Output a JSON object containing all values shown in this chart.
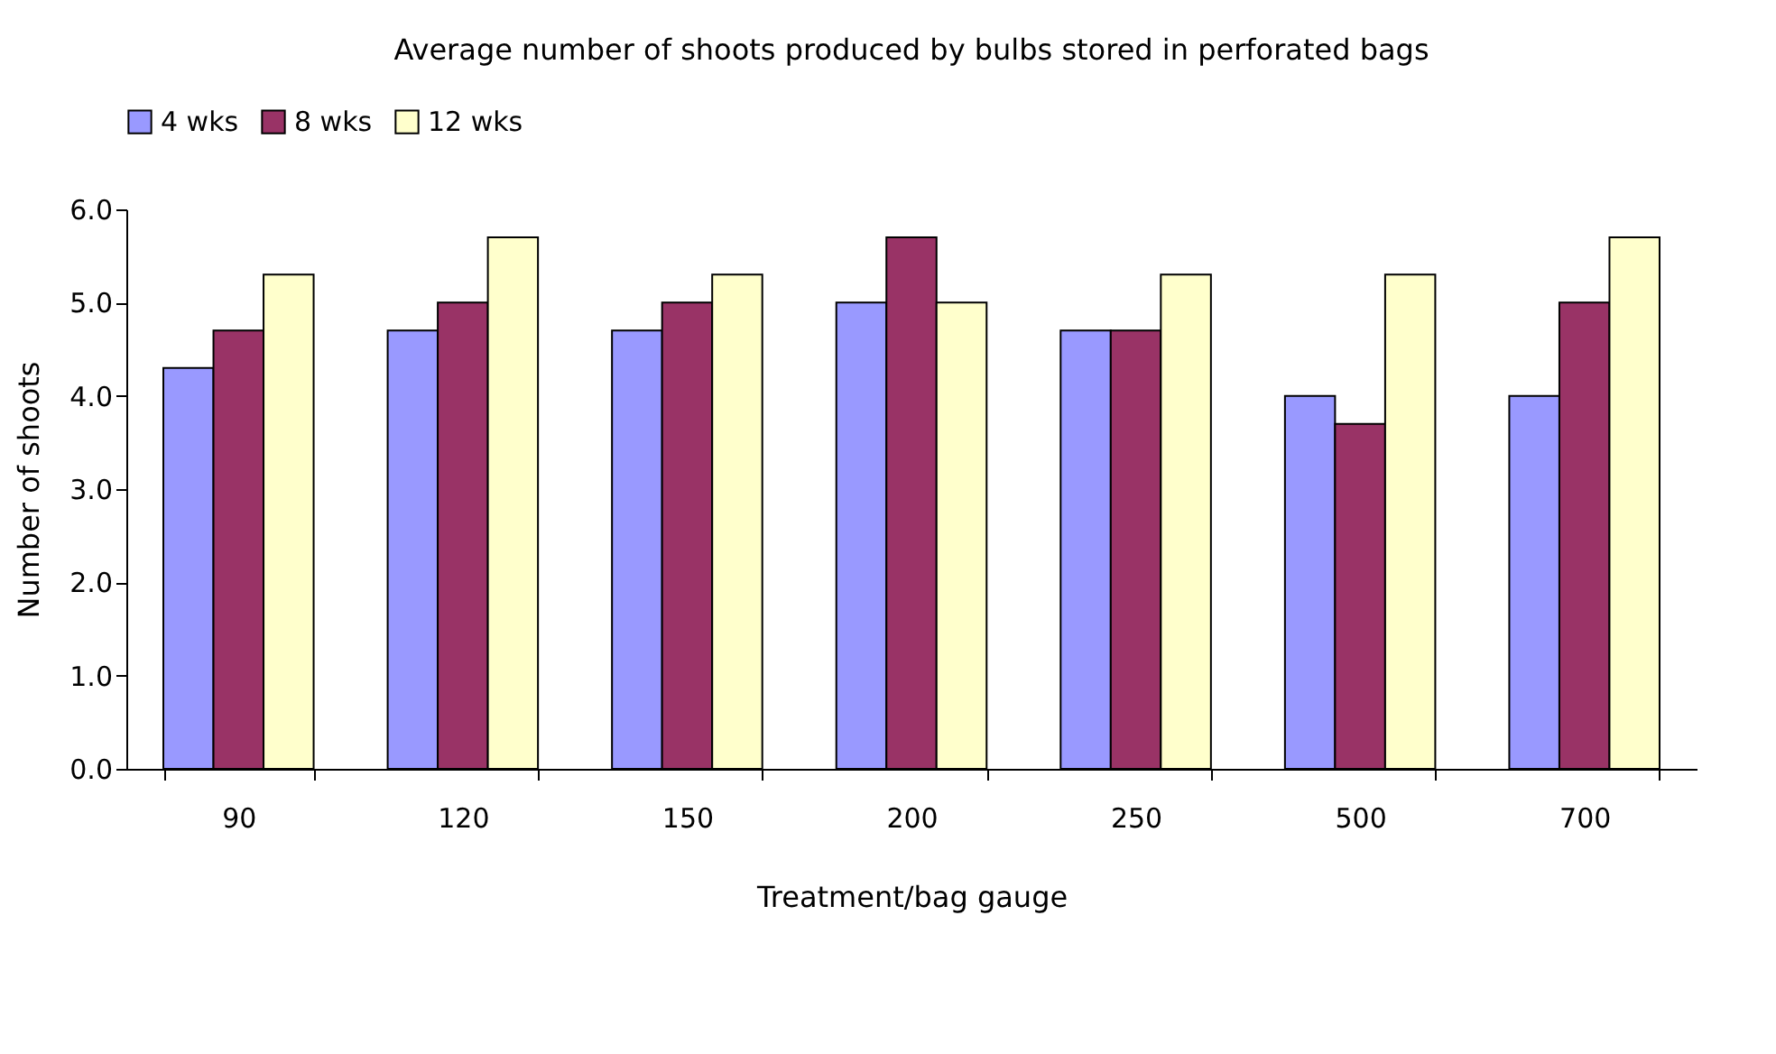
{
  "chart_data": {
    "type": "bar",
    "title": "Average number of shoots produced by bulbs stored in perforated bags",
    "xlabel": "Treatment/bag gauge",
    "ylabel": "Number of shoots",
    "categories": [
      "90",
      "120",
      "150",
      "200",
      "250",
      "500",
      "700"
    ],
    "series": [
      {
        "name": "4 wks",
        "color": "#9999ff",
        "values": [
          4.3,
          4.7,
          4.7,
          5.0,
          4.7,
          4.0,
          4.0
        ]
      },
      {
        "name": "8 wks",
        "color": "#993366",
        "values": [
          4.7,
          5.0,
          5.0,
          5.7,
          4.7,
          3.7,
          5.0
        ]
      },
      {
        "name": "12 wks",
        "color": "#ffffcc",
        "values": [
          5.3,
          5.7,
          5.3,
          5.0,
          5.3,
          5.3,
          5.7
        ]
      }
    ],
    "ylim": [
      0,
      6
    ],
    "yticks": [
      {
        "value": 0,
        "label": "0.0"
      },
      {
        "value": 1,
        "label": "1.0"
      },
      {
        "value": 2,
        "label": "2.0"
      },
      {
        "value": 3,
        "label": "3.0"
      },
      {
        "value": 4,
        "label": "4.0"
      },
      {
        "value": 5,
        "label": "5.0"
      },
      {
        "value": 6,
        "label": "6.0"
      }
    ],
    "grid": false,
    "legend": "top"
  }
}
